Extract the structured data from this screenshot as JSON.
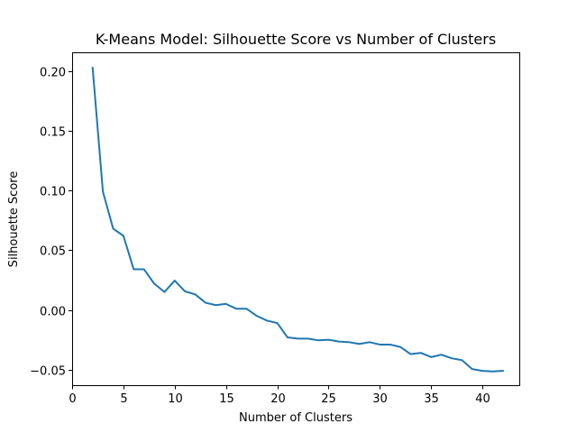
{
  "chart_data": {
    "type": "line",
    "title": "K-Means Model: Silhouette Score vs Number of Clusters",
    "xlabel": "Number of Clusters",
    "ylabel": "Silhouette Score",
    "xlim": [
      0,
      43.6
    ],
    "ylim": [
      -0.063,
      0.2155
    ],
    "xticks": [
      0,
      5,
      10,
      15,
      20,
      25,
      30,
      35,
      40
    ],
    "xtick_labels": [
      "0",
      "5",
      "10",
      "15",
      "20",
      "25",
      "30",
      "35",
      "40"
    ],
    "yticks": [
      -0.05,
      0.0,
      0.05,
      0.1,
      0.15,
      0.2
    ],
    "ytick_labels": [
      "−0.05",
      "0.00",
      "0.05",
      "0.10",
      "0.15",
      "0.20"
    ],
    "grid": false,
    "line_color": "#1f77b4",
    "x": [
      2,
      3,
      4,
      5,
      6,
      7,
      8,
      9,
      10,
      11,
      12,
      13,
      14,
      15,
      16,
      17,
      18,
      19,
      20,
      21,
      22,
      23,
      24,
      25,
      26,
      27,
      28,
      29,
      30,
      31,
      32,
      33,
      34,
      35,
      36,
      37,
      38,
      39,
      40,
      41,
      42
    ],
    "y": [
      0.2025,
      0.099,
      0.068,
      0.062,
      0.034,
      0.034,
      0.022,
      0.015,
      0.0245,
      0.0155,
      0.013,
      0.006,
      0.004,
      0.005,
      0.001,
      0.001,
      -0.005,
      -0.009,
      -0.011,
      -0.023,
      -0.024,
      -0.024,
      -0.0255,
      -0.025,
      -0.0265,
      -0.027,
      -0.0285,
      -0.027,
      -0.029,
      -0.029,
      -0.031,
      -0.037,
      -0.036,
      -0.0395,
      -0.0375,
      -0.0405,
      -0.042,
      -0.0495,
      -0.051,
      -0.0515,
      -0.051
    ]
  }
}
